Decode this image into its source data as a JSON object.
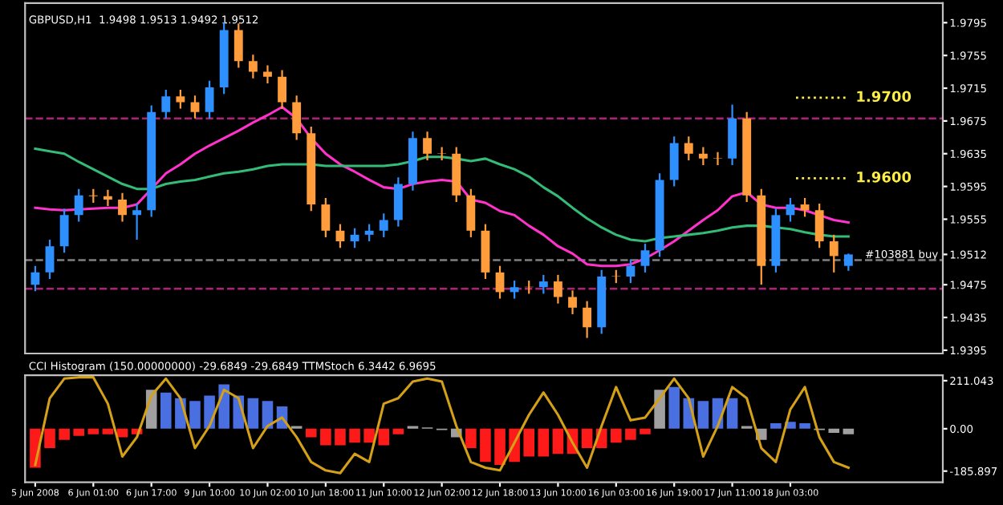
{
  "chart_data": [
    {
      "type": "candlestick",
      "title": "GBPUSD,H1  1.9498 1.9513 1.9492 1.9512",
      "categories": [
        null,
        null,
        null,
        null,
        null,
        null,
        null,
        null,
        null,
        null,
        null,
        null,
        null,
        null,
        null,
        null,
        null,
        null,
        null,
        null,
        null,
        null,
        null,
        null,
        null,
        null,
        null,
        null,
        null,
        null,
        null,
        null,
        null,
        null,
        null,
        null,
        null,
        null,
        null,
        null,
        null,
        null,
        null,
        null,
        null,
        null,
        null,
        null,
        null,
        null,
        null,
        null,
        null,
        null,
        null,
        null,
        null
      ],
      "ohlc": [
        [
          1.9475,
          1.9498,
          1.9467,
          1.949
        ],
        [
          1.949,
          1.953,
          1.9482,
          1.9522
        ],
        [
          1.9522,
          1.9568,
          1.9514,
          1.956
        ],
        [
          1.956,
          1.9592,
          1.9552,
          1.9584
        ],
        [
          1.9584,
          1.9592,
          1.9575,
          1.9583
        ],
        [
          1.9583,
          1.9591,
          1.9571,
          1.9579
        ],
        [
          1.9579,
          1.9587,
          1.9552,
          1.956
        ],
        [
          1.956,
          1.9574,
          1.953,
          1.9566
        ],
        [
          1.9566,
          1.9694,
          1.9558,
          1.9686
        ],
        [
          1.9686,
          1.9713,
          1.9678,
          1.9705
        ],
        [
          1.9705,
          1.9713,
          1.969,
          1.9698
        ],
        [
          1.9698,
          1.9706,
          1.9678,
          1.9686
        ],
        [
          1.9686,
          1.9724,
          1.9678,
          1.9716
        ],
        [
          1.9716,
          1.9795,
          1.9708,
          1.9786
        ],
        [
          1.9786,
          1.9794,
          1.974,
          1.9748
        ],
        [
          1.9748,
          1.9756,
          1.9727,
          1.9735
        ],
        [
          1.9735,
          1.9743,
          1.9721,
          1.9729
        ],
        [
          1.9729,
          1.9737,
          1.969,
          1.9698
        ],
        [
          1.9698,
          1.9706,
          1.9652,
          1.966
        ],
        [
          1.966,
          1.9668,
          1.9565,
          1.9573
        ],
        [
          1.9573,
          1.9581,
          1.9533,
          1.9541
        ],
        [
          1.9541,
          1.9549,
          1.952,
          1.9528
        ],
        [
          1.9528,
          1.9544,
          1.952,
          1.9536
        ],
        [
          1.9536,
          1.9549,
          1.9528,
          1.9541
        ],
        [
          1.9541,
          1.9562,
          1.9533,
          1.9554
        ],
        [
          1.9554,
          1.9606,
          1.9546,
          1.9598
        ],
        [
          1.9598,
          1.9662,
          1.959,
          1.9654
        ],
        [
          1.9654,
          1.9662,
          1.9627,
          1.9635
        ],
        [
          1.9635,
          1.9643,
          1.9627,
          1.9635
        ],
        [
          1.9635,
          1.9643,
          1.9576,
          1.9584
        ],
        [
          1.9584,
          1.9592,
          1.9533,
          1.9541
        ],
        [
          1.9541,
          1.9549,
          1.9482,
          1.949
        ],
        [
          1.949,
          1.9498,
          1.9458,
          1.9466
        ],
        [
          1.9466,
          1.948,
          1.9458,
          1.9472
        ],
        [
          1.9472,
          1.948,
          1.9464,
          1.9472
        ],
        [
          1.9472,
          1.9487,
          1.9464,
          1.9479
        ],
        [
          1.9479,
          1.9487,
          1.9452,
          1.946
        ],
        [
          1.946,
          1.9468,
          1.9439,
          1.9447
        ],
        [
          1.9447,
          1.9455,
          1.941,
          1.9423
        ],
        [
          1.9423,
          1.9493,
          1.9415,
          1.9485
        ],
        [
          1.9485,
          1.9493,
          1.9477,
          1.9485
        ],
        [
          1.9485,
          1.9506,
          1.9477,
          1.9498
        ],
        [
          1.9498,
          1.9525,
          1.949,
          1.9517
        ],
        [
          1.9517,
          1.9611,
          1.9509,
          1.9603
        ],
        [
          1.9603,
          1.9656,
          1.9595,
          1.9648
        ],
        [
          1.9648,
          1.9656,
          1.9627,
          1.9635
        ],
        [
          1.9635,
          1.9643,
          1.9621,
          1.9629
        ],
        [
          1.9629,
          1.9637,
          1.9621,
          1.9629
        ],
        [
          1.9629,
          1.9695,
          1.9621,
          1.9678
        ],
        [
          1.9678,
          1.9686,
          1.9576,
          1.9584
        ],
        [
          1.9584,
          1.9592,
          1.9475,
          1.9498
        ],
        [
          1.9498,
          1.9568,
          1.949,
          1.956
        ],
        [
          1.956,
          1.9581,
          1.9552,
          1.9573
        ],
        [
          1.9573,
          1.9581,
          1.9558,
          1.9566
        ],
        [
          1.9566,
          1.9574,
          1.952,
          1.9528
        ],
        [
          1.9528,
          1.9536,
          1.949,
          1.951
        ],
        [
          1.9498,
          1.9513,
          1.9492,
          1.9512
        ]
      ],
      "colors": [
        "#2e8fff",
        "#2e8fff",
        "#2e8fff",
        "#2e8fff",
        "#ff9c3c",
        "#ff9c3c",
        "#ff9c3c",
        "#2e8fff",
        "#2e8fff",
        "#2e8fff",
        "#ff9c3c",
        "#ff9c3c",
        "#2e8fff",
        "#2e8fff",
        "#ff9c3c",
        "#ff9c3c",
        "#ff9c3c",
        "#ff9c3c",
        "#ff9c3c",
        "#ff9c3c",
        "#ff9c3c",
        "#ff9c3c",
        "#2e8fff",
        "#2e8fff",
        "#2e8fff",
        "#2e8fff",
        "#2e8fff",
        "#ff9c3c",
        "#ff9c3c",
        "#ff9c3c",
        "#ff9c3c",
        "#ff9c3c",
        "#ff9c3c",
        "#2e8fff",
        "#ff9c3c",
        "#2e8fff",
        "#ff9c3c",
        "#ff9c3c",
        "#ff9c3c",
        "#2e8fff",
        "#ff9c3c",
        "#2e8fff",
        "#2e8fff",
        "#2e8fff",
        "#2e8fff",
        "#ff9c3c",
        "#ff9c3c",
        "#ff9c3c",
        "#2e8fff",
        "#ff9c3c",
        "#ff9c3c",
        "#2e8fff",
        "#2e8fff",
        "#ff9c3c",
        "#ff9c3c",
        "#ff9c3c",
        "#2e8fff"
      ],
      "series": [
        {
          "type": "line",
          "color": "#ff33cc",
          "values": [
            1.9569,
            1.9567,
            1.9566,
            1.9567,
            1.9568,
            1.9569,
            1.9569,
            1.9573,
            1.9592,
            1.9611,
            1.9622,
            1.9635,
            1.9645,
            1.9654,
            1.9663,
            1.9673,
            1.9682,
            1.9692,
            1.9678,
            1.9654,
            1.9635,
            1.9622,
            1.9613,
            1.9603,
            1.9594,
            1.9592,
            1.9598,
            1.9601,
            1.9603,
            1.9601,
            1.9579,
            1.9575,
            1.9565,
            1.956,
            1.9547,
            1.9536,
            1.9522,
            1.9513,
            1.95,
            1.9498,
            1.9498,
            1.95,
            1.9507,
            1.9517,
            1.9528,
            1.9541,
            1.9554,
            1.9566,
            1.9583,
            1.9588,
            1.9573,
            1.9569,
            1.9569,
            1.9566,
            1.956,
            1.9554,
            1.9551
          ]
        },
        {
          "type": "line",
          "color": "#33bb77",
          "values": [
            1.9641,
            1.9638,
            1.9635,
            1.9625,
            1.9616,
            1.9607,
            1.9598,
            1.9592,
            1.9592,
            1.9598,
            1.9601,
            1.9603,
            1.9607,
            1.9611,
            1.9613,
            1.9616,
            1.962,
            1.9622,
            1.9622,
            1.9622,
            1.962,
            1.962,
            1.962,
            1.962,
            1.962,
            1.9622,
            1.9626,
            1.9631,
            1.9631,
            1.9629,
            1.9626,
            1.9629,
            1.9622,
            1.9616,
            1.9607,
            1.9594,
            1.9583,
            1.9569,
            1.9556,
            1.9545,
            1.9536,
            1.953,
            1.9528,
            1.9532,
            1.9534,
            1.9536,
            1.9538,
            1.9541,
            1.9545,
            1.9547,
            1.9547,
            1.9545,
            1.9543,
            1.9539,
            1.9536,
            1.9534,
            1.9534
          ]
        }
      ],
      "ylim": [
        1.9391,
        1.9819
      ],
      "yticks": [
        1.9795,
        1.9755,
        1.9715,
        1.9675,
        1.9635,
        1.9595,
        1.9555,
        1.9512,
        1.9475,
        1.9435,
        1.9395
      ],
      "ref_lines": [
        {
          "axis": "y",
          "value": 1.9505,
          "label": "#103881 buy",
          "color": "#808080",
          "line_style": "dashed"
        },
        {
          "axis": "y",
          "value": 1.9678,
          "color": "#b0207a",
          "line_style": "dashed"
        },
        {
          "axis": "y",
          "value": 1.947,
          "color": "#b0207a",
          "line_style": "dashed"
        }
      ],
      "annotations": [
        "1.9700",
        "1.9600"
      ],
      "tick_labels": "y",
      "grid": false
    },
    {
      "type": "bar",
      "title": "CCI Histogram (150.00000000) -29.6849 -29.6849 TTMStoch 6.3442 6.9695",
      "categories": [
        "5 Jun 2008",
        null,
        null,
        null,
        "6 Jun 01:00",
        null,
        null,
        null,
        "6 Jun 17:00",
        null,
        null,
        null,
        "9 Jun 10:00",
        null,
        null,
        null,
        "10 Jun 02:00",
        null,
        null,
        null,
        "10 Jun 18:00",
        null,
        null,
        null,
        "11 Jun 10:00",
        null,
        null,
        null,
        "12 Jun 02:00",
        null,
        null,
        null,
        "12 Jun 18:00",
        null,
        null,
        null,
        "13 Jun 10:00",
        null,
        null,
        null,
        "16 Jun 03:00",
        null,
        null,
        null,
        "16 Jun 19:00",
        null,
        null,
        null,
        "17 Jun 11:00",
        null,
        null,
        null,
        "18 Jun 03:00",
        null,
        null,
        null,
        null
      ],
      "values": [
        -171,
        -85,
        -49,
        -31,
        -24,
        -24,
        -37,
        -24,
        171,
        159,
        134,
        122,
        146,
        195,
        146,
        134,
        122,
        98,
        12,
        -37,
        -73,
        -73,
        -61,
        -61,
        -73,
        -24,
        12,
        6,
        -6,
        -37,
        -85,
        -146,
        -159,
        -146,
        -122,
        -122,
        -110,
        -110,
        -85,
        -85,
        -61,
        -49,
        -24,
        171,
        183,
        134,
        122,
        134,
        134,
        12,
        -49,
        24,
        30,
        24,
        -6,
        -18,
        -24
      ],
      "colors": [
        "#ff1a1a",
        "#ff1a1a",
        "#ff1a1a",
        "#ff1a1a",
        "#ff1a1a",
        "#ff1a1a",
        "#ff1a1a",
        "#ff1a1a",
        "#a0a0a0",
        "#4a6fe0",
        "#4a6fe0",
        "#4a6fe0",
        "#4a6fe0",
        "#4a6fe0",
        "#4a6fe0",
        "#4a6fe0",
        "#4a6fe0",
        "#4a6fe0",
        "#a0a0a0",
        "#ff1a1a",
        "#ff1a1a",
        "#ff1a1a",
        "#ff1a1a",
        "#ff1a1a",
        "#ff1a1a",
        "#ff1a1a",
        "#a0a0a0",
        "#a0a0a0",
        "#a0a0a0",
        "#a0a0a0",
        "#ff1a1a",
        "#ff1a1a",
        "#ff1a1a",
        "#ff1a1a",
        "#ff1a1a",
        "#ff1a1a",
        "#ff1a1a",
        "#ff1a1a",
        "#ff1a1a",
        "#ff1a1a",
        "#ff1a1a",
        "#ff1a1a",
        "#ff1a1a",
        "#a0a0a0",
        "#4a6fe0",
        "#4a6fe0",
        "#4a6fe0",
        "#4a6fe0",
        "#4a6fe0",
        "#a0a0a0",
        "#a0a0a0",
        "#4a6fe0",
        "#4a6fe0",
        "#4a6fe0",
        "#a0a0a0",
        "#a0a0a0",
        "#a0a0a0"
      ],
      "series": [
        {
          "type": "line",
          "color": "#d4a017",
          "values": [
            -159,
            134,
            220,
            226,
            226,
            110,
            -122,
            -37,
            146,
            220,
            134,
            -85,
            12,
            171,
            134,
            -85,
            12,
            49,
            -37,
            -146,
            -183,
            -195,
            -110,
            -146,
            110,
            134,
            207,
            220,
            207,
            12,
            -146,
            -171,
            -183,
            -61,
            61,
            159,
            61,
            -61,
            -171,
            12,
            183,
            37,
            49,
            134,
            220,
            134,
            -122,
            12,
            183,
            134,
            -85,
            -146,
            85,
            183,
            -37,
            -146,
            -171
          ]
        }
      ],
      "ylim": [
        -235,
        235
      ],
      "yticks": [
        211.043,
        {
          "value": 0,
          "label": "0.00"
        },
        {
          "value": -185.897,
          "label": "-185.897"
        }
      ],
      "grid": false
    }
  ]
}
